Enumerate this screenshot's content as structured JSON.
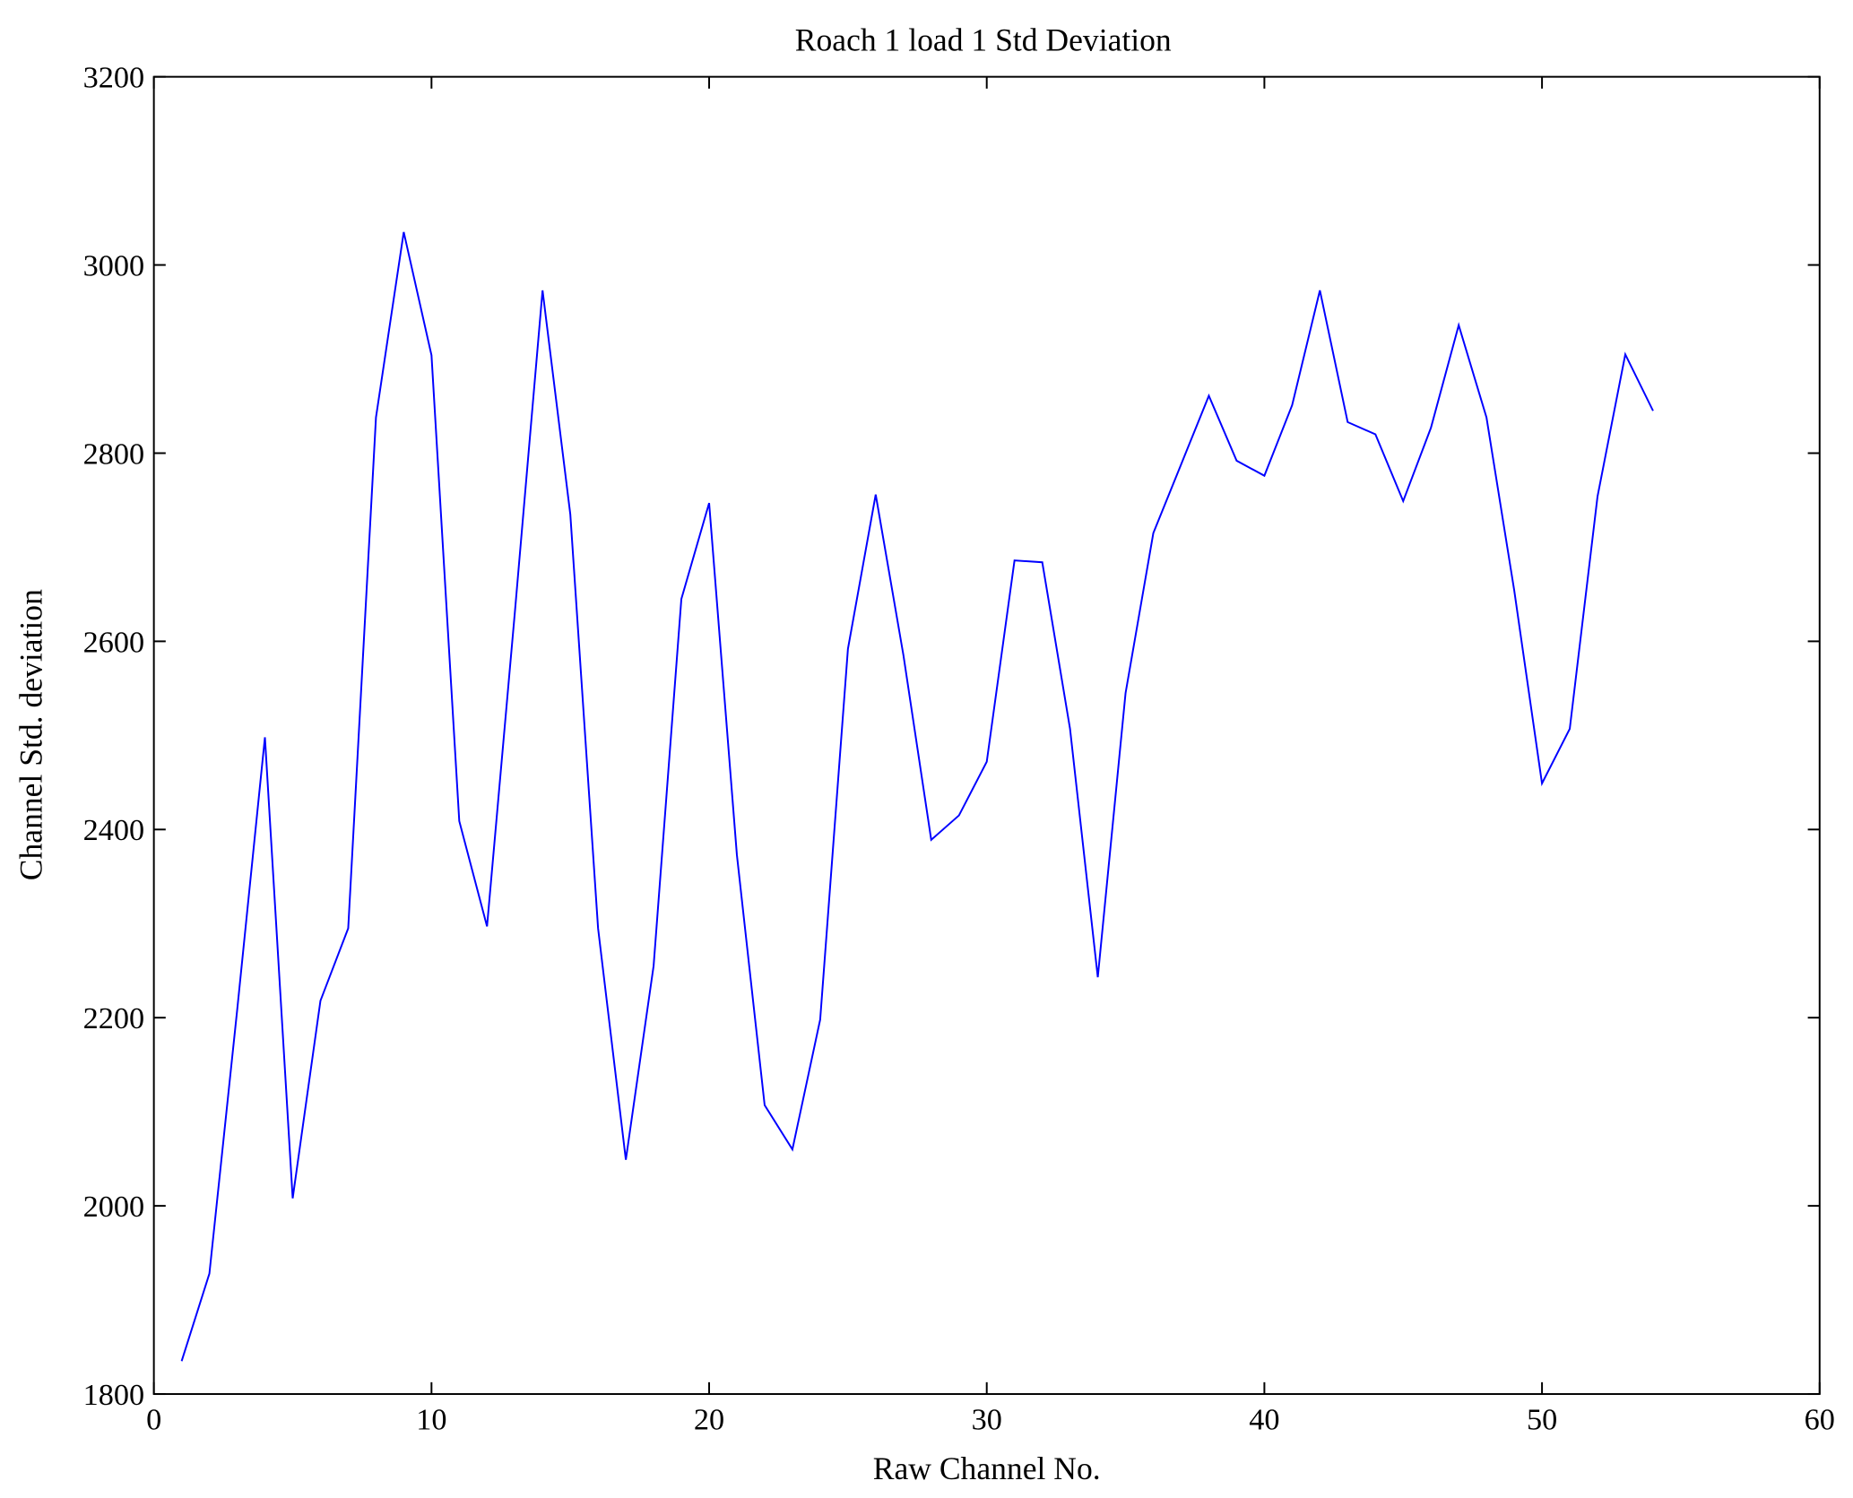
{
  "chart_data": {
    "type": "line",
    "title": "Roach 1 load 1 Std Deviation",
    "xlabel": "Raw Channel No.",
    "ylabel": "Channel Std. deviation",
    "xlim": [
      0,
      60
    ],
    "ylim": [
      1800,
      3200
    ],
    "xticks": [
      0,
      10,
      20,
      30,
      40,
      50,
      60
    ],
    "yticks": [
      1800,
      2000,
      2200,
      2400,
      2600,
      2800,
      3000,
      3200
    ],
    "grid": false,
    "series": [
      {
        "name": "std",
        "color": "#0000ff",
        "x": [
          1,
          2,
          3,
          4,
          5,
          6,
          7,
          8,
          9,
          10,
          11,
          12,
          13,
          14,
          15,
          16,
          17,
          18,
          19,
          20,
          21,
          22,
          23,
          24,
          25,
          26,
          27,
          28,
          29,
          30,
          31,
          32,
          33,
          34,
          35,
          36,
          37,
          38,
          39,
          40,
          41,
          42,
          43,
          44,
          45,
          46,
          47,
          48,
          49,
          50,
          51,
          52,
          53,
          54
        ],
        "values": [
          1835,
          1928,
          2208,
          2498,
          2008,
          2218,
          2295,
          2838,
          3035,
          2904,
          2409,
          2297,
          2630,
          2973,
          2735,
          2295,
          2049,
          2255,
          2645,
          2747,
          2373,
          2107,
          2060,
          2198,
          2592,
          2756,
          2585,
          2389,
          2415,
          2472,
          2686,
          2684,
          2507,
          2243,
          2545,
          2715,
          2788,
          2861,
          2792,
          2776,
          2851,
          2973,
          2833,
          2820,
          2749,
          2827,
          2936,
          2838,
          2654,
          2449,
          2507,
          2754,
          2905,
          2845
        ]
      }
    ]
  }
}
